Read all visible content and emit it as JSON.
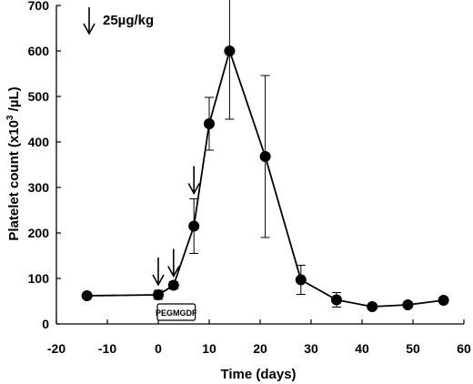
{
  "chart_data": {
    "type": "line",
    "title": "",
    "xlabel": "Time (days)",
    "ylabel_main": "Platelet count (x10",
    "ylabel_sup": "3",
    "ylabel_tail": " /µL)",
    "xlim": [
      -20,
      60
    ],
    "ylim": [
      0,
      700
    ],
    "xticks": [
      -20,
      -10,
      0,
      10,
      20,
      30,
      40,
      50,
      60
    ],
    "yticks": [
      0,
      100,
      200,
      300,
      400,
      500,
      600,
      700
    ],
    "grid": false,
    "series": [
      {
        "x": [
          -14,
          0,
          3,
          7,
          10,
          14,
          21,
          28,
          35,
          42,
          49,
          56
        ],
        "y": [
          62,
          64,
          85,
          215,
          440,
          600,
          368,
          97,
          53,
          38,
          42,
          52
        ],
        "err": [
          0,
          10,
          8,
          60,
          58,
          150,
          178,
          32,
          16,
          0,
          0,
          0
        ]
      }
    ],
    "dose_days": [
      0,
      3,
      7
    ],
    "legend": {
      "symbol": "arrow-down",
      "label": "25µg/kg"
    },
    "treatment_box": {
      "label": "PEGMGDF",
      "x_start": 0,
      "x_end": 6
    }
  }
}
